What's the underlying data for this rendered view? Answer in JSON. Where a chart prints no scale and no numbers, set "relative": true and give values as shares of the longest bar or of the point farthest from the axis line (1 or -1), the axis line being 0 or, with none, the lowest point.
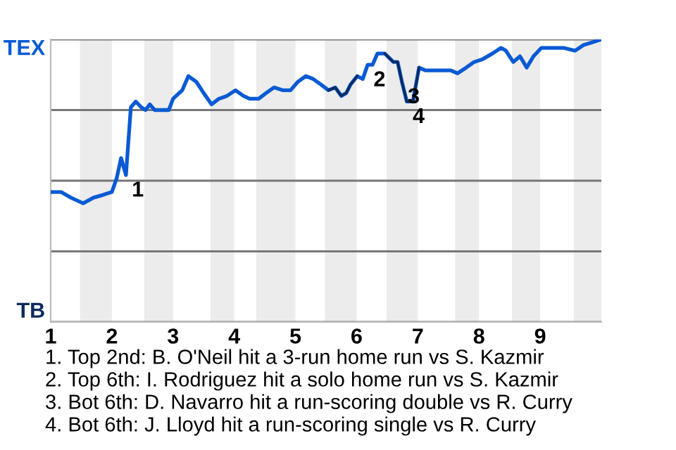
{
  "chart_data": {
    "type": "line",
    "relative": true,
    "x": [
      1.0,
      1.17,
      1.33,
      1.53,
      1.7,
      1.86,
      2.0,
      2.08,
      2.15,
      2.23,
      2.31,
      2.39,
      2.48,
      2.55,
      2.62,
      2.7,
      2.82,
      2.93,
      3.0,
      3.15,
      3.25,
      3.38,
      3.5,
      3.63,
      3.75,
      3.88,
      4.02,
      4.15,
      4.25,
      4.4,
      4.52,
      4.65,
      4.79,
      4.92,
      5.04,
      5.17,
      5.29,
      5.42,
      5.54,
      5.65,
      5.75,
      5.83,
      5.9,
      6.01,
      6.1,
      6.18,
      6.26,
      6.34,
      6.46,
      6.6,
      6.67,
      6.74,
      6.82,
      6.92,
      7.02,
      7.13,
      7.27,
      7.4,
      7.54,
      7.65,
      7.79,
      7.92,
      8.06,
      8.22,
      8.36,
      8.44,
      8.56,
      8.67,
      8.78,
      8.89,
      9.02,
      9.19,
      9.38,
      9.57,
      9.71,
      9.86,
      10.0
    ],
    "series": [
      {
        "color": "#0a5ad4",
        "values": [
          0.46,
          0.46,
          0.44,
          0.42,
          0.44,
          0.45,
          0.46,
          0.51,
          0.58,
          0.52,
          0.76,
          0.78,
          0.76,
          0.75,
          0.77,
          0.75,
          0.75,
          0.75,
          0.79,
          0.82,
          0.87,
          0.85,
          0.81,
          0.77,
          0.79,
          0.8,
          0.82,
          0.8,
          0.79,
          0.79,
          0.81,
          0.83,
          0.82,
          0.82,
          0.85,
          0.87,
          0.86,
          0.84,
          0.82,
          0.83,
          0.8,
          0.81,
          0.84,
          0.87,
          0.86,
          0.91,
          0.91,
          0.95,
          0.95,
          0.92,
          0.92,
          0.85,
          0.78,
          0.78,
          0.9,
          0.89,
          0.89,
          0.89,
          0.89,
          0.88,
          0.9,
          0.92,
          0.93,
          0.95,
          0.97,
          0.96,
          0.92,
          0.94,
          0.9,
          0.94,
          0.97,
          0.97,
          0.97,
          0.96,
          0.98,
          0.99,
          1.0
        ]
      },
      {
        "color": "#0c2a5c",
        "values": [
          null,
          null,
          null,
          null,
          null,
          null,
          null,
          null,
          null,
          null,
          null,
          null,
          null,
          null,
          null,
          null,
          null,
          null,
          null,
          null,
          null,
          null,
          null,
          null,
          null,
          null,
          null,
          null,
          null,
          null,
          null,
          null,
          null,
          null,
          null,
          null,
          null,
          null,
          0.82,
          0.83,
          0.8,
          0.81,
          0.84,
          0.87,
          null,
          null,
          null,
          null,
          0.95,
          0.92,
          0.92,
          0.85,
          0.78,
          0.78,
          0.9,
          null,
          null,
          null,
          null,
          null,
          null,
          null,
          null,
          null,
          null,
          null,
          null,
          null,
          null,
          null,
          null,
          null,
          null,
          null,
          null,
          null,
          null
        ]
      }
    ],
    "xlim": [
      1,
      10
    ],
    "xticks": [
      1,
      2,
      3,
      4,
      5,
      6,
      7,
      8,
      9
    ],
    "grid": "y",
    "bands": [
      {
        "axis": "x",
        "from": 1.48,
        "to": 2,
        "color": "#ececec"
      },
      {
        "axis": "x",
        "from": 2.53,
        "to": 3,
        "color": "#ececec"
      },
      {
        "axis": "x",
        "from": 3.61,
        "to": 4,
        "color": "#ececec"
      },
      {
        "axis": "x",
        "from": 4.36,
        "to": 5,
        "color": "#ececec"
      },
      {
        "axis": "x",
        "from": 5.48,
        "to": 6,
        "color": "#ececec"
      },
      {
        "axis": "x",
        "from": 6.49,
        "to": 7,
        "color": "#ececec"
      },
      {
        "axis": "x",
        "from": 7.61,
        "to": 8,
        "color": "#ececec"
      },
      {
        "axis": "x",
        "from": 8.54,
        "to": 9,
        "color": "#ececec"
      },
      {
        "axis": "x",
        "from": 9.55,
        "to": 10,
        "color": "#ececec"
      }
    ],
    "annotations": [
      "TEX",
      "TB",
      {
        "text": "1",
        "x": 2.23,
        "y": 0.52
      },
      {
        "text": "2",
        "x": 6.18,
        "y": 0.91
      },
      {
        "text": "3",
        "x": 6.74,
        "y": 0.85
      },
      {
        "text": "4",
        "x": 6.82,
        "y": 0.78
      },
      "1. Top 2nd: B. O'Neil hit a 3-run home run vs S. Kazmir",
      "2. Top 6th: I. Rodriguez hit a solo home run vs S. Kazmir",
      "3. Bot 6th: D. Navarro hit a run-scoring double vs R. Curry",
      "4. Bot 6th: J. Lloyd hit a run-scoring single vs R. Curry"
    ]
  }
}
